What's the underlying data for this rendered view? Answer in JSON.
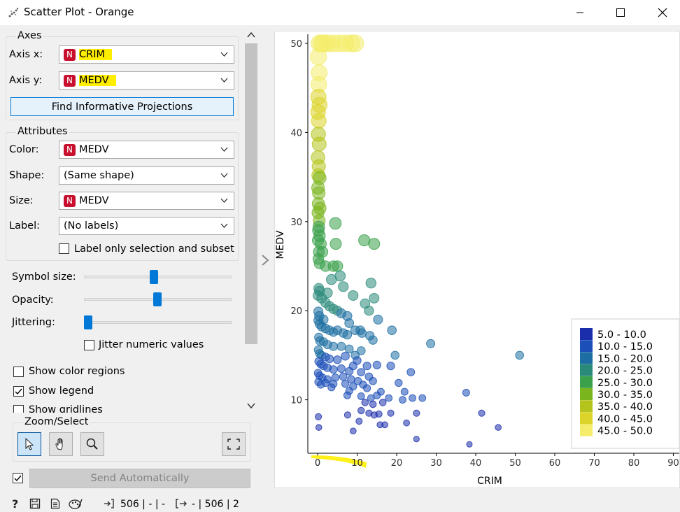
{
  "window": {
    "title": "Scatter Plot - Orange"
  },
  "axes": {
    "group_title": "Axes",
    "x_label": "Axis x:",
    "x_value": "CRIM",
    "y_label": "Axis y:",
    "y_value": "MEDV",
    "find_button": "Find Informative Projections"
  },
  "attributes": {
    "group_title": "Attributes",
    "color_label": "Color:",
    "color_value": "MEDV",
    "shape_label": "Shape:",
    "shape_value": "(Same shape)",
    "size_label": "Size:",
    "size_value": "MEDV",
    "label_label": "Label:",
    "label_value": "(No labels)",
    "label_only_selection": "Label only selection and subset",
    "badge": "N"
  },
  "sliders": {
    "symbol_size_label": "Symbol size:",
    "symbol_size_value": 0.47,
    "opacity_label": "Opacity:",
    "opacity_value": 0.5,
    "jittering_label": "Jittering:",
    "jittering_value": 0.0,
    "jitter_numeric": "Jitter numeric values"
  },
  "options": {
    "show_color_regions": "Show color regions",
    "show_color_regions_checked": false,
    "show_legend": "Show legend",
    "show_legend_checked": true,
    "show_gridlines": "Show gridlines",
    "show_gridlines_checked": false
  },
  "zoom_select": {
    "group_title": "Zoom/Select"
  },
  "send": {
    "label": "Send Automatically",
    "checked": true
  },
  "status_bar": {
    "input_text": "506 | - | -",
    "output_text": "- | 506 | 2"
  },
  "chart_data": {
    "type": "scatter",
    "xlabel": "CRIM",
    "ylabel": "MEDV",
    "xlim": [
      -2,
      90
    ],
    "ylim": [
      4,
      51
    ],
    "xticks": [
      "0",
      "10",
      "20",
      "30",
      "40",
      "50",
      "60",
      "70",
      "80",
      "90"
    ],
    "yticks": [
      "10",
      "20",
      "30",
      "40",
      "50"
    ],
    "legend": {
      "placement": "bottom-right",
      "entries": [
        {
          "label": "5.0 - 10.0",
          "color": "#1a2dab"
        },
        {
          "label": "10.0 - 15.0",
          "color": "#1c4fb8"
        },
        {
          "label": "15.0 - 20.0",
          "color": "#1d6fa3"
        },
        {
          "label": "20.0 - 25.0",
          "color": "#2a8a7a"
        },
        {
          "label": "25.0 - 30.0",
          "color": "#3aa04a"
        },
        {
          "label": "30.0 - 35.0",
          "color": "#7ab51e"
        },
        {
          "label": "35.0 - 40.0",
          "color": "#b4c41c"
        },
        {
          "label": "40.0 - 45.0",
          "color": "#dcd42a"
        },
        {
          "label": "45.0 - 50.0",
          "color": "#f4ec6a"
        }
      ]
    },
    "points": [
      [
        0.5,
        50
      ],
      [
        1.0,
        50
      ],
      [
        1.5,
        50
      ],
      [
        2.5,
        50
      ],
      [
        3.8,
        50
      ],
      [
        5.5,
        50
      ],
      [
        7.0,
        50
      ],
      [
        8.5,
        50
      ],
      [
        9.5,
        50
      ],
      [
        0.2,
        48.5
      ],
      [
        0.4,
        46.7
      ],
      [
        0.3,
        45.4
      ],
      [
        0.2,
        44.0
      ],
      [
        0.5,
        43.1
      ],
      [
        0.1,
        42.3
      ],
      [
        0.3,
        41.3
      ],
      [
        0.2,
        39.8
      ],
      [
        0.4,
        38.7
      ],
      [
        0.1,
        37.2
      ],
      [
        0.3,
        36.2
      ],
      [
        0.2,
        35.2
      ],
      [
        0.5,
        34.9
      ],
      [
        0.1,
        33.8
      ],
      [
        0.3,
        33.2
      ],
      [
        0.2,
        32.0
      ],
      [
        0.6,
        31.5
      ],
      [
        0.1,
        31.0
      ],
      [
        0.4,
        30.1
      ],
      [
        0.3,
        29.4
      ],
      [
        0.2,
        29.0
      ],
      [
        0.5,
        28.4
      ],
      [
        0.1,
        27.9
      ],
      [
        0.8,
        27.5
      ],
      [
        0.3,
        26.6
      ],
      [
        1.2,
        26.6
      ],
      [
        0.2,
        25.8
      ],
      [
        0.5,
        25.3
      ],
      [
        4.5,
        29.8
      ],
      [
        4.6,
        27.5
      ],
      [
        11.8,
        27.9
      ],
      [
        14.3,
        27.5
      ],
      [
        2.0,
        25.0
      ],
      [
        4.0,
        25.0
      ],
      [
        5.0,
        25.0
      ],
      [
        5.7,
        23.9
      ],
      [
        3.5,
        23.5
      ],
      [
        6.5,
        22.7
      ],
      [
        2.5,
        22.0
      ],
      [
        0.3,
        22.5
      ],
      [
        0.5,
        22.2
      ],
      [
        0.1,
        21.7
      ],
      [
        1.0,
        21.4
      ],
      [
        2.0,
        20.9
      ],
      [
        3.0,
        20.5
      ],
      [
        4.0,
        20.2
      ],
      [
        5.0,
        20.0
      ],
      [
        6.0,
        19.7
      ],
      [
        7.5,
        19.4
      ],
      [
        0.2,
        19.9
      ],
      [
        0.4,
        19.4
      ],
      [
        1.5,
        19.0
      ],
      [
        13.5,
        23.1
      ],
      [
        14.3,
        21.4
      ],
      [
        12.0,
        20.8
      ],
      [
        13.0,
        20.0
      ],
      [
        9.0,
        21.7
      ],
      [
        15.3,
        19.0
      ],
      [
        8.0,
        18.6
      ],
      [
        0.2,
        18.9
      ],
      [
        0.5,
        18.5
      ],
      [
        1.0,
        18.2
      ],
      [
        2.0,
        18.0
      ],
      [
        3.0,
        17.8
      ],
      [
        4.0,
        17.6
      ],
      [
        5.0,
        17.8
      ],
      [
        6.5,
        17.5
      ],
      [
        7.5,
        17.3
      ],
      [
        9.5,
        17.8
      ],
      [
        10.8,
        17.8
      ],
      [
        11.2,
        17.5
      ],
      [
        13.2,
        17.2
      ],
      [
        18.8,
        17.8
      ],
      [
        0.3,
        17.0
      ],
      [
        0.6,
        16.6
      ],
      [
        1.5,
        16.5
      ],
      [
        2.5,
        16.2
      ],
      [
        4.0,
        16.0
      ],
      [
        6.0,
        16.0
      ],
      [
        8.0,
        15.7
      ],
      [
        11.0,
        15.5
      ],
      [
        14.0,
        16.7
      ],
      [
        28.6,
        16.3
      ],
      [
        51.1,
        15.0
      ],
      [
        0.2,
        15.6
      ],
      [
        0.5,
        15.2
      ],
      [
        1.0,
        15.0
      ],
      [
        2.0,
        14.8
      ],
      [
        3.0,
        14.6
      ],
      [
        5.0,
        14.5
      ],
      [
        7.0,
        14.9
      ],
      [
        9.5,
        15.0
      ],
      [
        19.6,
        15.0
      ],
      [
        0.3,
        14.3
      ],
      [
        0.8,
        14.0
      ],
      [
        1.5,
        13.8
      ],
      [
        2.5,
        13.6
      ],
      [
        4.0,
        13.4
      ],
      [
        6.0,
        13.5
      ],
      [
        8.0,
        13.2
      ],
      [
        9.0,
        13.8
      ],
      [
        10.0,
        14.4
      ],
      [
        11.0,
        13.1
      ],
      [
        12.5,
        13.8
      ],
      [
        15.0,
        13.9
      ],
      [
        18.5,
        13.8
      ],
      [
        23.6,
        13.1
      ],
      [
        0.1,
        13.0
      ],
      [
        0.5,
        12.7
      ],
      [
        1.2,
        12.5
      ],
      [
        2.5,
        12.3
      ],
      [
        4.5,
        12.5
      ],
      [
        6.5,
        12.6
      ],
      [
        8.5,
        12.3
      ],
      [
        10.2,
        12.1
      ],
      [
        13.0,
        12.6
      ],
      [
        0.2,
        12.0
      ],
      [
        2.0,
        11.9
      ],
      [
        4.0,
        11.8
      ],
      [
        7.0,
        11.8
      ],
      [
        9.0,
        11.5
      ],
      [
        11.5,
        11.7
      ],
      [
        14.0,
        12.1
      ],
      [
        20.5,
        11.9
      ],
      [
        0.8,
        11.7
      ],
      [
        3.5,
        11.4
      ],
      [
        8.0,
        11.0
      ],
      [
        12.5,
        11.3
      ],
      [
        16.0,
        10.9
      ],
      [
        22.0,
        10.9
      ],
      [
        7.5,
        10.5
      ],
      [
        11.0,
        10.4
      ],
      [
        13.5,
        10.2
      ],
      [
        15.0,
        10.5
      ],
      [
        18.0,
        10.2
      ],
      [
        24.0,
        10.2
      ],
      [
        26.5,
        10.2
      ],
      [
        37.6,
        10.8
      ],
      [
        12.0,
        9.7
      ],
      [
        14.0,
        9.5
      ],
      [
        16.5,
        9.7
      ],
      [
        21.5,
        10.0
      ],
      [
        11.0,
        8.8
      ],
      [
        13.0,
        8.5
      ],
      [
        15.5,
        8.4
      ],
      [
        18.5,
        8.5
      ],
      [
        25.0,
        8.5
      ],
      [
        41.5,
        8.5
      ],
      [
        0.2,
        8.1
      ],
      [
        7.6,
        8.3
      ],
      [
        14.3,
        8.3
      ],
      [
        10.5,
        7.6
      ],
      [
        15.8,
        7.2
      ],
      [
        17.0,
        7.2
      ],
      [
        22.5,
        7.4
      ],
      [
        0.3,
        6.9
      ],
      [
        9.0,
        6.5
      ],
      [
        45.7,
        6.9
      ],
      [
        25.0,
        5.6
      ],
      [
        38.4,
        5.0
      ],
      [
        88.9,
        10.4
      ],
      [
        73.5,
        8.8
      ],
      [
        67.9,
        5.0
      ]
    ]
  }
}
